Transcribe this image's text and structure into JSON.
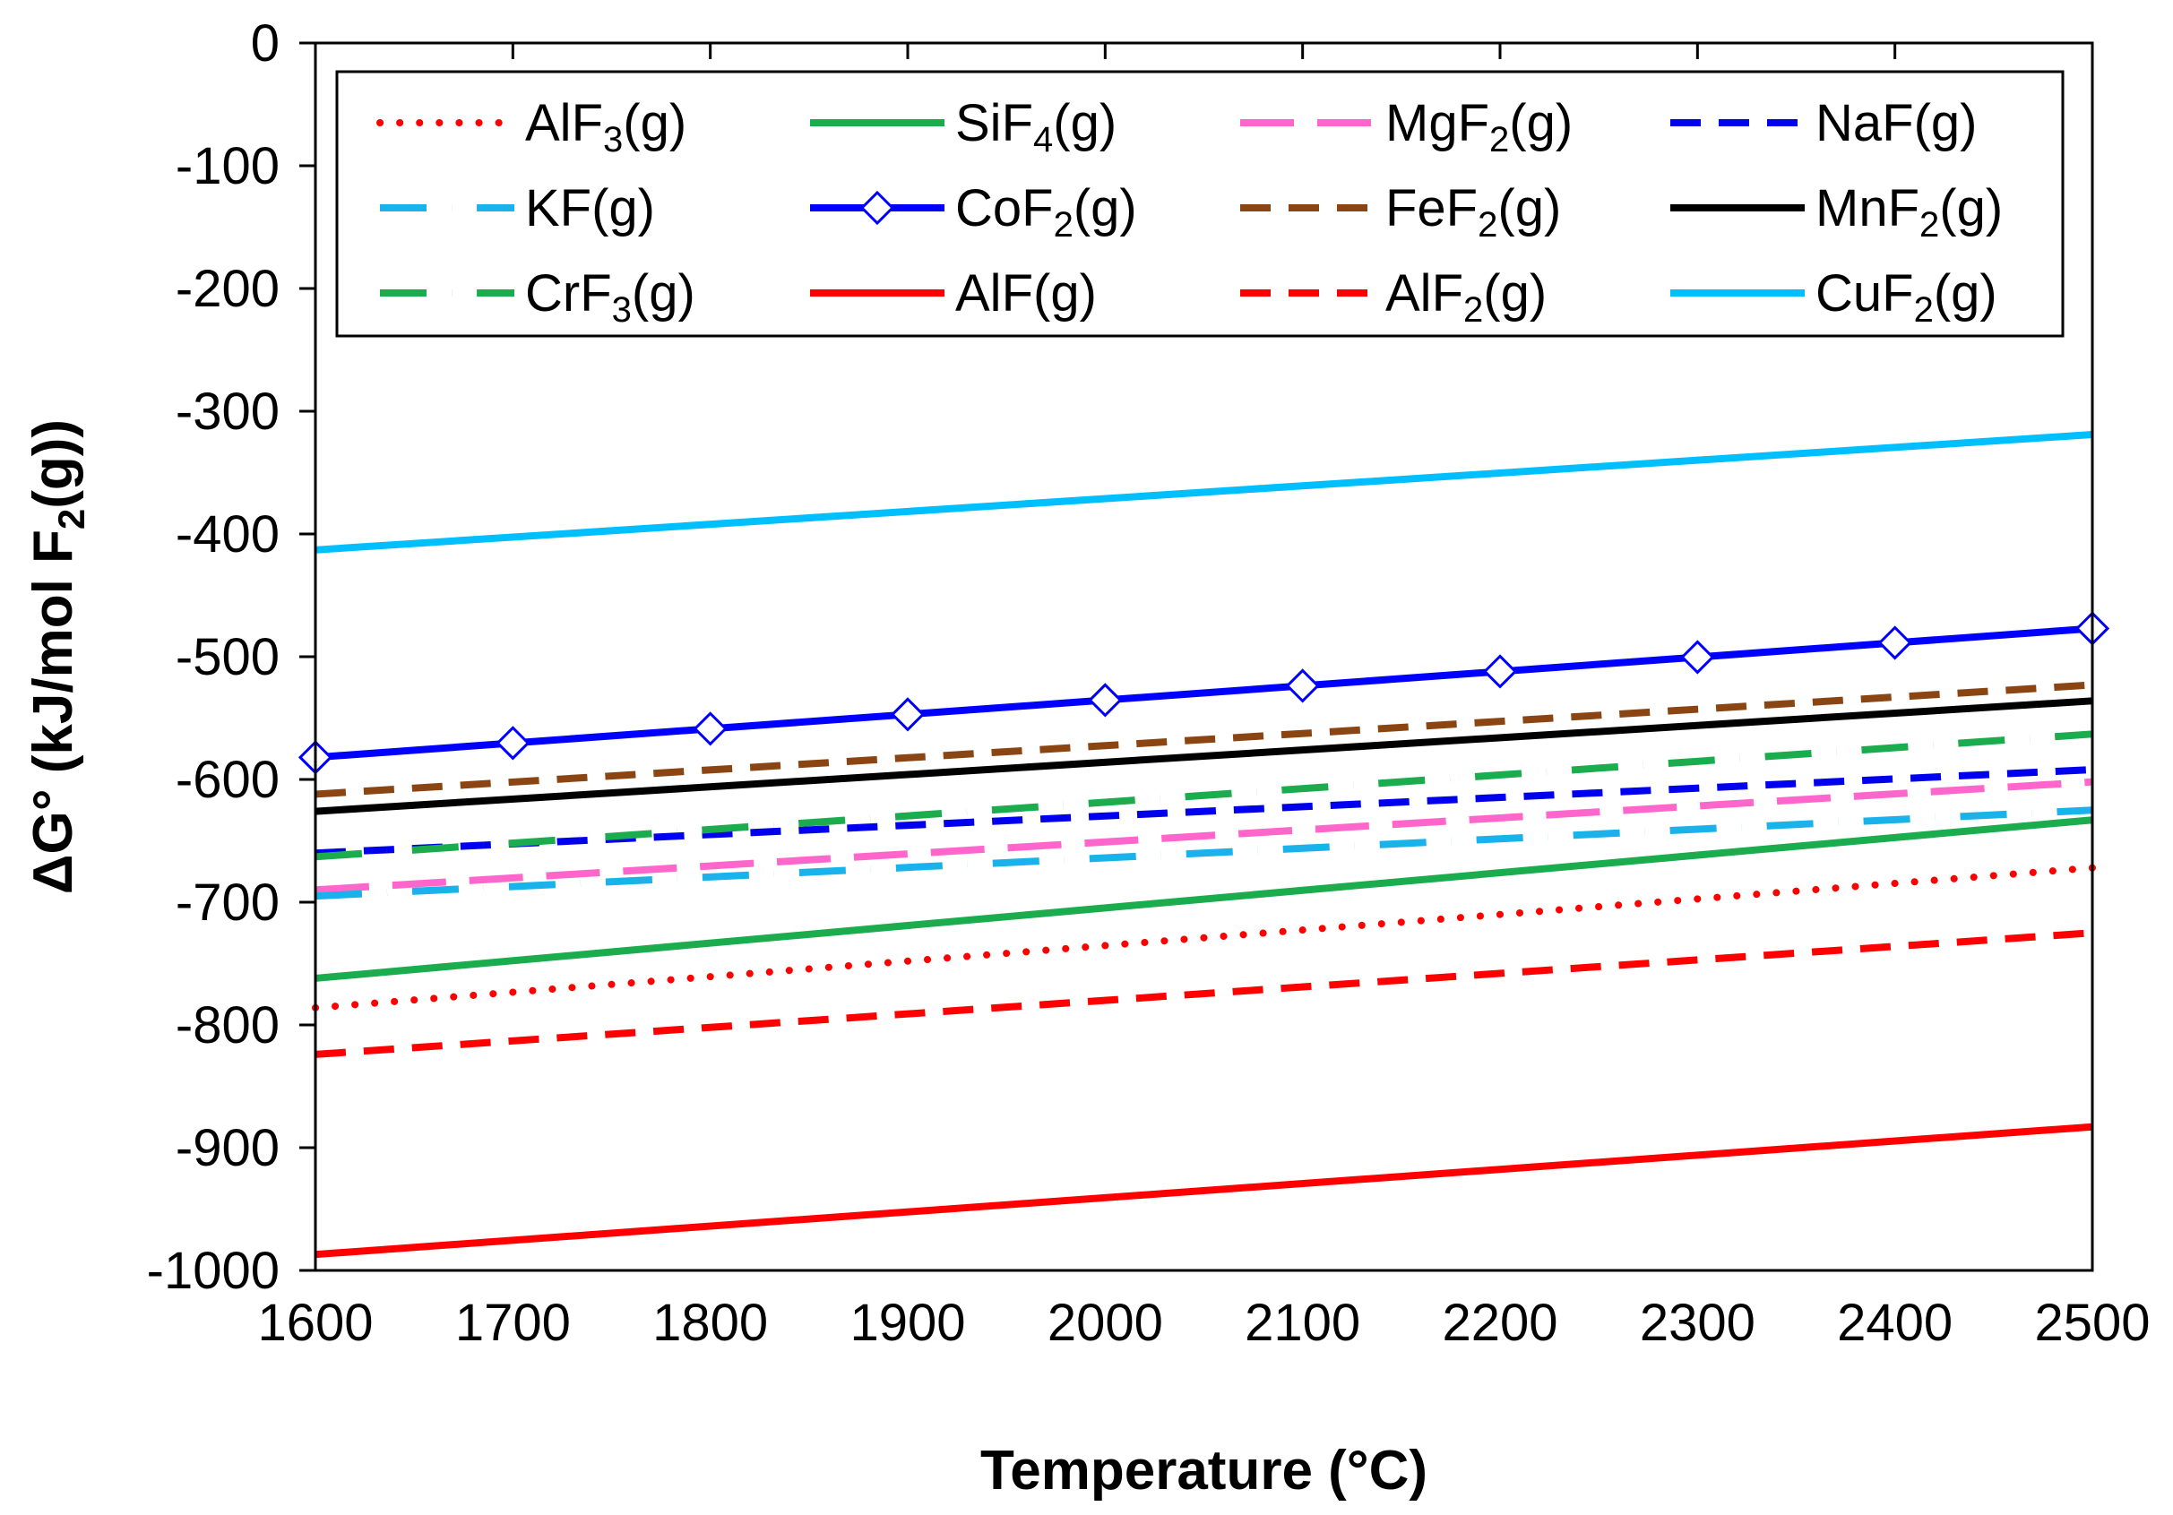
{
  "chart_data": {
    "type": "line",
    "xlabel": "Temperature (°C)",
    "ylabel_parts": [
      "ΔG° (kJ/mol F",
      "2",
      "(g))"
    ],
    "xlim": [
      1600,
      2500
    ],
    "ylim": [
      -1000,
      0
    ],
    "x_ticks": [
      1600,
      1700,
      1800,
      1900,
      2000,
      2100,
      2200,
      2300,
      2400,
      2500
    ],
    "y_ticks": [
      0,
      -100,
      -200,
      -300,
      -400,
      -500,
      -600,
      -700,
      -800,
      -900,
      -1000
    ],
    "grid": false,
    "legend_position": "top",
    "x": [
      1600,
      2500
    ],
    "series": [
      {
        "name": "AlF3(g)",
        "label_parts": [
          "AlF",
          "3",
          "(g)"
        ],
        "color": "#ff0000",
        "style": "dotted",
        "values": [
          -786,
          -672
        ]
      },
      {
        "name": "SiF4(g)",
        "label_parts": [
          "SiF",
          "4",
          "(g)"
        ],
        "color": "#1aac4d",
        "style": "solid",
        "values": [
          -762,
          -633
        ]
      },
      {
        "name": "MgF2(g)",
        "label_parts": [
          "MgF",
          "2",
          "(g)"
        ],
        "color": "#ff66cc",
        "style": "longdash",
        "values": [
          -690,
          -602
        ]
      },
      {
        "name": "NaF(g)",
        "label_parts": [
          "NaF(g)",
          "",
          ""
        ],
        "color": "#0000ee",
        "style": "dash",
        "values": [
          -660,
          -592
        ]
      },
      {
        "name": "KF(g)",
        "label_parts": [
          "KF(g)",
          "",
          ""
        ],
        "color": "#1ab2ea",
        "style": "dashdot",
        "values": [
          -695,
          -625
        ]
      },
      {
        "name": "CoF2(g)",
        "label_parts": [
          "CoF",
          "2",
          "(g)"
        ],
        "color": "#0000ff",
        "style": "solid-diamond",
        "values": [
          -582,
          -477
        ]
      },
      {
        "name": "FeF2(g)",
        "label_parts": [
          "FeF",
          "2",
          "(g)"
        ],
        "color": "#8b4513",
        "style": "dash",
        "values": [
          -612,
          -523
        ]
      },
      {
        "name": "MnF2(g)",
        "label_parts": [
          "MnF",
          "2",
          "(g)"
        ],
        "color": "#000000",
        "style": "solid",
        "values": [
          -626,
          -536
        ]
      },
      {
        "name": "CrF3(g)",
        "label_parts": [
          "CrF",
          "3",
          "(g)"
        ],
        "color": "#1aac4d",
        "style": "dashdot",
        "values": [
          -663,
          -563
        ]
      },
      {
        "name": "AlF(g)",
        "label_parts": [
          "AlF(g)",
          "",
          ""
        ],
        "color": "#ff0000",
        "style": "solid",
        "values": [
          -987,
          -883
        ]
      },
      {
        "name": "AlF2(g)",
        "label_parts": [
          "AlF",
          "2",
          "(g)"
        ],
        "color": "#ff0000",
        "style": "dash",
        "values": [
          -824,
          -725
        ]
      },
      {
        "name": "CuF2(g)",
        "label_parts": [
          "CuF",
          "2",
          "(g)"
        ],
        "color": "#00bfff",
        "style": "solid",
        "values": [
          -413,
          -319
        ]
      }
    ]
  }
}
